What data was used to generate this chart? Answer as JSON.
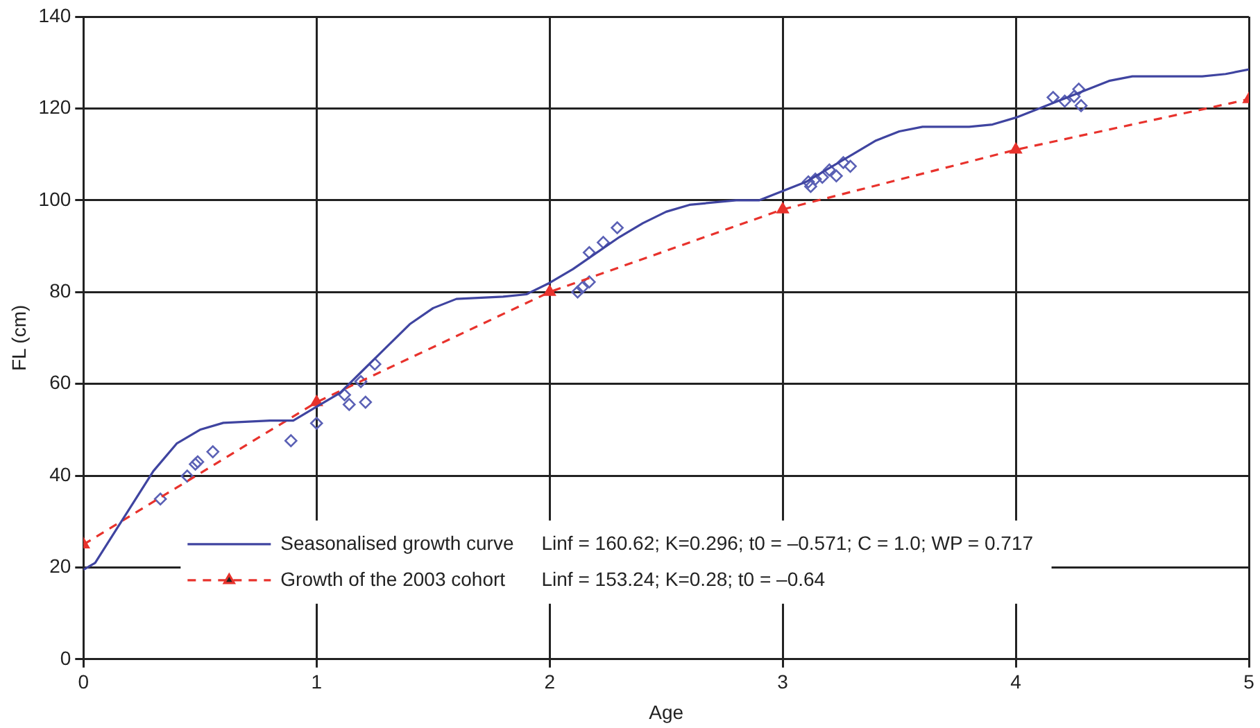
{
  "chart_data": {
    "type": "line",
    "xlabel": "Age",
    "ylabel": "FL (cm)",
    "xlim": [
      0,
      5
    ],
    "xticks": [
      0,
      1,
      2,
      3,
      4,
      5
    ],
    "ylim": [
      0,
      140
    ],
    "yticks": [
      0,
      20,
      40,
      60,
      80,
      100,
      120,
      140
    ],
    "grid": true,
    "legend": "bottom",
    "annotations": [
      "Linf = 160.62; K=0.296; t0 = –0.571; C = 1.0; WP = 0.717",
      "Linf = 153.24; K=0.28; t0 = –0.64"
    ],
    "series": [
      {
        "name": "Seasonalised growth curve",
        "color": "#3f44a0",
        "marker": "none",
        "line_style": "solid",
        "x": [
          0,
          0.05,
          0.2,
          0.3,
          0.4,
          0.5,
          0.6,
          0.8,
          0.9,
          1.0,
          1.1,
          1.2,
          1.3,
          1.4,
          1.5,
          1.6,
          1.8,
          1.9,
          2.0,
          2.1,
          2.2,
          2.3,
          2.4,
          2.5,
          2.6,
          2.8,
          2.9,
          3.0,
          3.1,
          3.2,
          3.3,
          3.4,
          3.5,
          3.6,
          3.8,
          3.9,
          4.0,
          4.1,
          4.2,
          4.3,
          4.4,
          4.5,
          4.6,
          4.8,
          4.9,
          5.0
        ],
        "values": [
          19.5,
          21,
          33,
          41,
          47,
          50,
          51.5,
          52,
          52,
          55,
          58,
          63,
          68,
          73,
          76.5,
          78.5,
          79,
          79.5,
          82,
          85,
          88.5,
          92,
          95,
          97.5,
          99,
          100,
          100,
          102,
          104,
          107,
          110,
          113,
          115,
          116,
          116,
          116.5,
          118,
          120,
          122,
          124,
          126,
          127,
          127,
          127,
          127.5,
          128.5
        ]
      },
      {
        "name": "Growth of the 2003 cohort",
        "color": "#e8322c",
        "marker": "triangle",
        "line_style": "dashed",
        "x": [
          0,
          1,
          2,
          3,
          4,
          5
        ],
        "values": [
          25,
          56,
          80,
          98,
          111,
          122
        ]
      },
      {
        "type": "scatter",
        "color": "#5a60b5",
        "marker": "diamond",
        "x": [
          0.33,
          0.445,
          0.48,
          0.49,
          0.555,
          0.89,
          1.0,
          1.12,
          1.14,
          1.21,
          1.19,
          1.25,
          2.12,
          2.14,
          2.17,
          2.17,
          2.23,
          2.29,
          3.11,
          3.12,
          3.14,
          3.17,
          3.2,
          3.23,
          3.26,
          3.29,
          4.16,
          4.21,
          4.25,
          4.27,
          4.28
        ],
        "values": [
          34.9,
          39.9,
          42.5,
          43,
          45.2,
          47.6,
          51.4,
          57.6,
          55.5,
          56,
          60.5,
          64.3,
          80,
          81,
          82.2,
          88.6,
          90.8,
          94,
          104,
          103,
          104.6,
          105,
          106.6,
          105.3,
          108.2,
          107.4,
          122.4,
          121.6,
          122.6,
          124.2,
          120.6
        ]
      }
    ]
  }
}
